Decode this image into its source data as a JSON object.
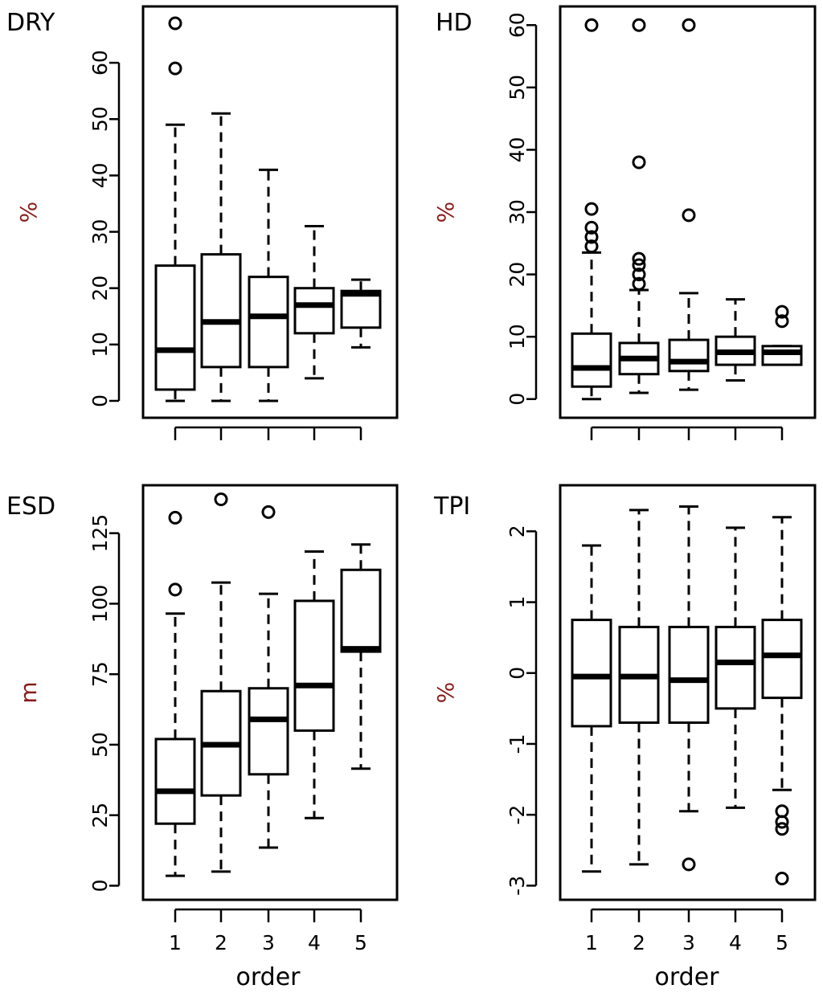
{
  "xlabel": "order",
  "chart_data": [
    {
      "type": "box",
      "title": "DRY",
      "ylabel": "%",
      "xlabel": "",
      "categories": [
        "1",
        "2",
        "3",
        "4",
        "5"
      ],
      "show_x_tick_labels": false,
      "ylim": [
        -3,
        70
      ],
      "yticks": [
        0,
        10,
        20,
        30,
        40,
        50,
        60
      ],
      "ytick_labels": [
        "0",
        "10",
        "20",
        "30",
        "40",
        "50",
        "60"
      ],
      "boxes": [
        {
          "category": "1",
          "whisker_low": 0,
          "q1": 2,
          "median": 9,
          "q3": 24,
          "whisker_high": 49,
          "outliers": [
            59,
            67
          ]
        },
        {
          "category": "2",
          "whisker_low": 0,
          "q1": 6,
          "median": 14,
          "q3": 26,
          "whisker_high": 51,
          "outliers": []
        },
        {
          "category": "3",
          "whisker_low": 0,
          "q1": 6,
          "median": 15,
          "q3": 22,
          "whisker_high": 41,
          "outliers": []
        },
        {
          "category": "4",
          "whisker_low": 4,
          "q1": 12,
          "median": 17,
          "q3": 20,
          "whisker_high": 31,
          "outliers": []
        },
        {
          "category": "5",
          "whisker_low": 9.5,
          "q1": 13,
          "median": 19,
          "q3": 19.5,
          "whisker_high": 21.5,
          "outliers": []
        }
      ]
    },
    {
      "type": "box",
      "title": "HD",
      "ylabel": "%",
      "xlabel": "",
      "categories": [
        "1",
        "2",
        "3",
        "4",
        "5"
      ],
      "show_x_tick_labels": false,
      "ylim": [
        -3,
        63
      ],
      "yticks": [
        0,
        10,
        20,
        30,
        40,
        50,
        60
      ],
      "ytick_labels": [
        "0",
        "10",
        "20",
        "30",
        "40",
        "50",
        "60"
      ],
      "boxes": [
        {
          "category": "1",
          "whisker_low": 0,
          "q1": 2,
          "median": 5,
          "q3": 10.5,
          "whisker_high": 23.5,
          "outliers": [
            24.5,
            26,
            27.5,
            30.5,
            60
          ]
        },
        {
          "category": "2",
          "whisker_low": 1,
          "q1": 4,
          "median": 6.5,
          "q3": 9,
          "whisker_high": 17.5,
          "outliers": [
            18.5,
            20,
            21.5,
            22.5,
            38,
            60
          ]
        },
        {
          "category": "3",
          "whisker_low": 1.5,
          "q1": 4.5,
          "median": 6,
          "q3": 9.5,
          "whisker_high": 17,
          "outliers": [
            29.5,
            60
          ]
        },
        {
          "category": "4",
          "whisker_low": 3,
          "q1": 5.5,
          "median": 7.5,
          "q3": 10,
          "whisker_high": 16,
          "outliers": []
        },
        {
          "category": "5",
          "whisker_low": 5.5,
          "q1": 5.5,
          "median": 7.5,
          "q3": 8.5,
          "whisker_high": 8.5,
          "outliers": [
            12.5,
            14
          ]
        }
      ]
    },
    {
      "type": "box",
      "title": "ESD",
      "ylabel": "m",
      "xlabel": "order",
      "categories": [
        "1",
        "2",
        "3",
        "4",
        "5"
      ],
      "show_x_tick_labels": true,
      "ylim": [
        -5,
        142
      ],
      "yticks": [
        0,
        25,
        50,
        75,
        100,
        125
      ],
      "ytick_labels": [
        "0",
        "25",
        "50",
        "75",
        "100",
        "125"
      ],
      "boxes": [
        {
          "category": "1",
          "whisker_low": 3.5,
          "q1": 22,
          "median": 33.5,
          "q3": 52,
          "whisker_high": 96.5,
          "outliers": [
            105,
            130.5
          ]
        },
        {
          "category": "2",
          "whisker_low": 5,
          "q1": 32,
          "median": 50,
          "q3": 69,
          "whisker_high": 107.5,
          "outliers": [
            137
          ]
        },
        {
          "category": "3",
          "whisker_low": 13.5,
          "q1": 39.5,
          "median": 59,
          "q3": 70,
          "whisker_high": 103.5,
          "outliers": [
            132.5
          ]
        },
        {
          "category": "4",
          "whisker_low": 24,
          "q1": 55,
          "median": 71,
          "q3": 101,
          "whisker_high": 118.5,
          "outliers": []
        },
        {
          "category": "5",
          "whisker_low": 41.5,
          "q1": 83,
          "median": 84,
          "q3": 112,
          "whisker_high": 121,
          "outliers": []
        }
      ]
    },
    {
      "type": "box",
      "title": "TPI",
      "ylabel": "%",
      "xlabel": "order",
      "categories": [
        "1",
        "2",
        "3",
        "4",
        "5"
      ],
      "show_x_tick_labels": true,
      "ylim": [
        -3.2,
        2.65
      ],
      "yticks": [
        -3,
        -2,
        -1,
        0,
        1,
        2
      ],
      "ytick_labels": [
        "-3",
        "-2",
        "-1",
        "0",
        "1",
        "2"
      ],
      "boxes": [
        {
          "category": "1",
          "whisker_low": -2.8,
          "q1": -0.75,
          "median": -0.05,
          "q3": 0.75,
          "whisker_high": 1.8,
          "outliers": []
        },
        {
          "category": "2",
          "whisker_low": -2.7,
          "q1": -0.7,
          "median": -0.05,
          "q3": 0.65,
          "whisker_high": 2.3,
          "outliers": []
        },
        {
          "category": "3",
          "whisker_low": -1.95,
          "q1": -0.7,
          "median": -0.1,
          "q3": 0.65,
          "whisker_high": 2.35,
          "outliers": [
            -2.7
          ]
        },
        {
          "category": "4",
          "whisker_low": -1.9,
          "q1": -0.5,
          "median": 0.15,
          "q3": 0.65,
          "whisker_high": 2.05,
          "outliers": []
        },
        {
          "category": "5",
          "whisker_low": -1.65,
          "q1": -0.35,
          "median": 0.25,
          "q3": 0.75,
          "whisker_high": 2.2,
          "outliers": [
            -1.95,
            -2.1,
            -2.2,
            -2.9
          ]
        }
      ]
    }
  ]
}
